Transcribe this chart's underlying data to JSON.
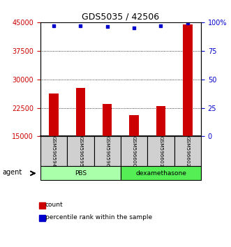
{
  "title": "GDS5035 / 42506",
  "samples": [
    "GSM596594",
    "GSM596595",
    "GSM596596",
    "GSM596600",
    "GSM596601",
    "GSM596602"
  ],
  "counts": [
    26200,
    27700,
    23500,
    20500,
    23000,
    44500
  ],
  "percentiles": [
    97,
    97,
    96,
    95,
    97,
    99
  ],
  "groups": [
    {
      "label": "PBS",
      "color": "#aaffaa",
      "indices": [
        0,
        1,
        2
      ]
    },
    {
      "label": "dexamethasone",
      "color": "#55ee55",
      "indices": [
        3,
        4,
        5
      ]
    }
  ],
  "bar_color": "#cc0000",
  "dot_color": "#0000cc",
  "ylim_left": [
    15000,
    45000
  ],
  "ylim_right": [
    0,
    100
  ],
  "yticks_left": [
    15000,
    22500,
    30000,
    37500,
    45000
  ],
  "yticks_right": [
    0,
    25,
    50,
    75,
    100
  ],
  "ytick_labels_left": [
    "15000",
    "22500",
    "30000",
    "37500",
    "45000"
  ],
  "ytick_labels_right": [
    "0",
    "25",
    "50",
    "75",
    "100%"
  ],
  "left_tick_color": "#cc0000",
  "right_tick_color": "#0000cc",
  "agent_label": "agent",
  "legend_count_label": "count",
  "legend_pct_label": "percentile rank within the sample",
  "bar_width": 0.35,
  "gsm_box_color": "#d0d0d0"
}
